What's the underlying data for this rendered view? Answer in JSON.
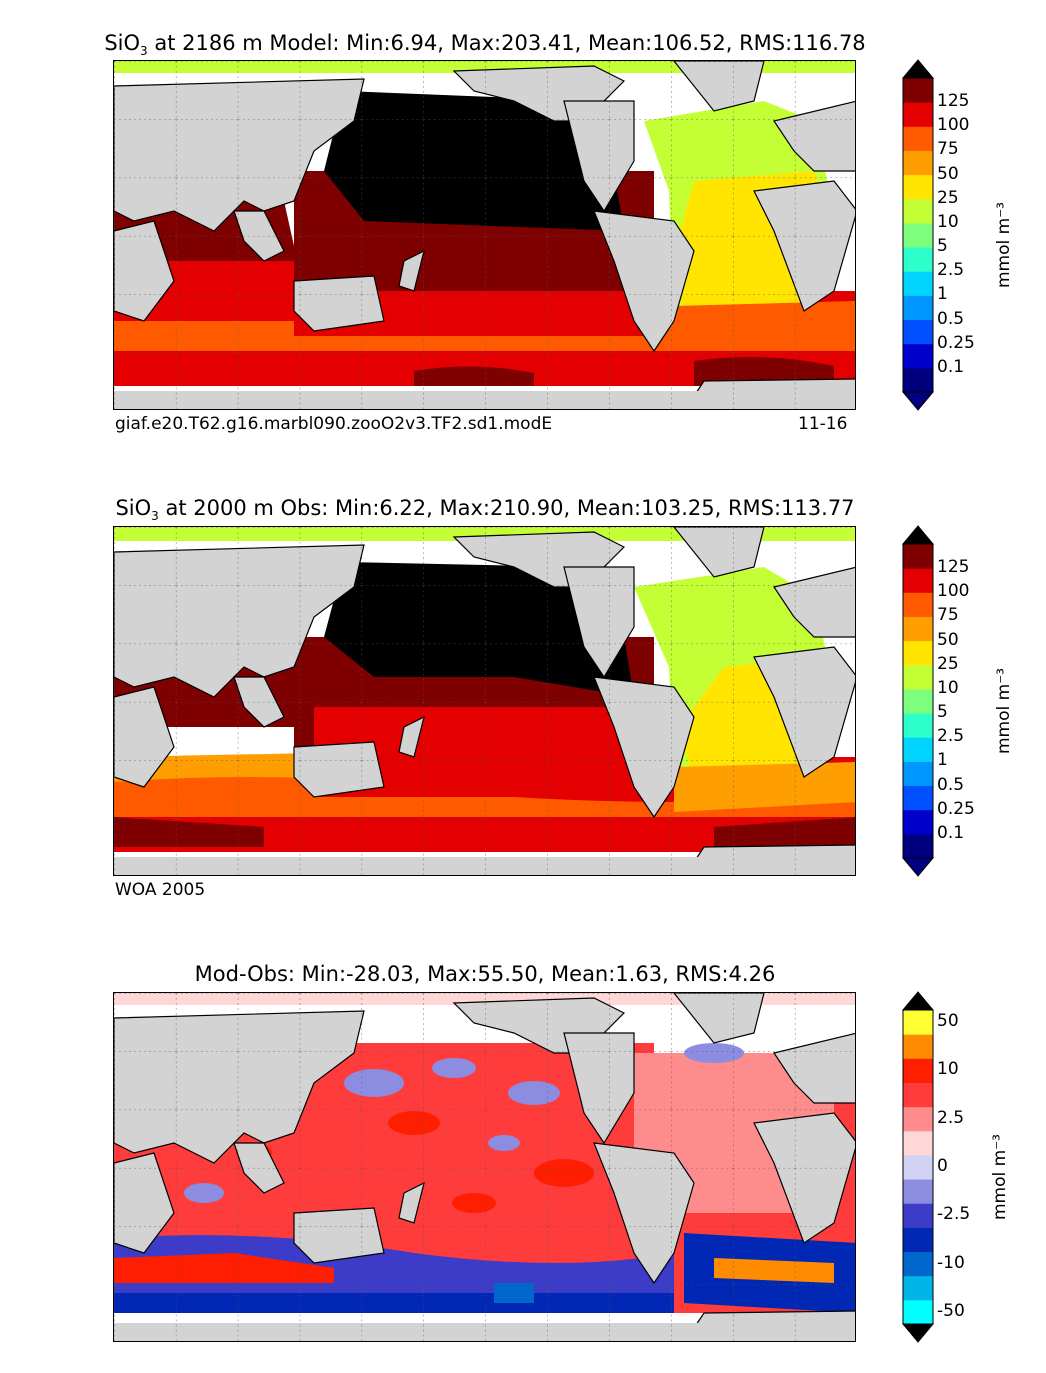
{
  "panels": {
    "model": {
      "title_species": "SiO",
      "title_sub": "3",
      "title_rest": " at 2186 m Model: Min:6.94, Max:203.41, Mean:106.52, RMS:116.78",
      "footer_left": "giaf.e20.T62.g16.marbl090.zooO2v3.TF2.sd1.modE",
      "footer_right": "11-16"
    },
    "obs": {
      "title_species": "SiO",
      "title_sub": "3",
      "title_rest": " at 2000 m Obs: Min:6.22, Max:210.90, Mean:103.25, RMS:113.77",
      "footer_left": "WOA 2005"
    },
    "diff": {
      "title": "Mod-Obs: Min:-28.03, Max:55.50, Mean:1.63, RMS:4.26"
    }
  },
  "colorbars": {
    "conc": {
      "units": "mmol m⁻³",
      "colors": [
        "#00007f",
        "#0000cd",
        "#0050ff",
        "#0096ff",
        "#00d4ff",
        "#2cffca",
        "#7dff7d",
        "#c4ff36",
        "#ffe500",
        "#ff9e00",
        "#ff5a00",
        "#e40000",
        "#7f0000"
      ],
      "tick_labels": [
        "0.1",
        "0.25",
        "0.5",
        "1",
        "2.5",
        "5",
        "10",
        "25",
        "50",
        "75",
        "100",
        "125"
      ],
      "extend_low": "#000080",
      "extend_high": "#000000"
    },
    "diff": {
      "units": "mmol m⁻³",
      "colors": [
        "#00ffff",
        "#00b4e8",
        "#0068cc",
        "#0028b4",
        "#3c3cc8",
        "#8c8ce0",
        "#d2d2f5",
        "#ffd7d7",
        "#ff8c8c",
        "#ff3c3c",
        "#ff1e00",
        "#ff8c00",
        "#ffff33"
      ],
      "tick_labels": [
        "-50",
        "-10",
        "-2.5",
        "0",
        "2.5",
        "10",
        "50"
      ],
      "extend_low": "#000000",
      "extend_high": "#000000"
    }
  }
}
